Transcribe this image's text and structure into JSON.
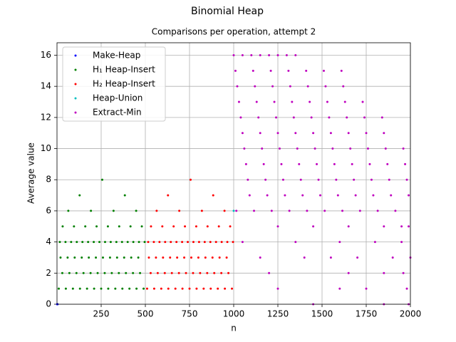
{
  "chart_data": {
    "type": "scatter",
    "title": "Binomial Heap",
    "subtitle": "Comparisons per operation, attempt 2",
    "x_label": "n",
    "y_label": "Average value",
    "xlim": [
      0,
      2000
    ],
    "ylim": [
      0,
      16.8
    ],
    "xticks": [
      250,
      500,
      750,
      1000,
      1250,
      1500,
      1750,
      2000
    ],
    "yticks": [
      0,
      2,
      4,
      6,
      8,
      10,
      12,
      14,
      16
    ],
    "grid": true,
    "legend": "upper left",
    "series": [
      {
        "name": "Make-Heap",
        "color": "#0000ff",
        "x": [
          1,
          2,
          3
        ],
        "values": [
          0,
          0,
          0
        ]
      },
      {
        "name": "H₁ Heap-Insert",
        "color": "#008000",
        "x": [
          10,
          50,
          90,
          130,
          170,
          210,
          250,
          290,
          330,
          370,
          410,
          450,
          490,
          30,
          70,
          110,
          150,
          190,
          230,
          270,
          310,
          350,
          390,
          430,
          470,
          20,
          60,
          100,
          140,
          180,
          220,
          260,
          300,
          340,
          380,
          420,
          460,
          16,
          48,
          80,
          112,
          144,
          176,
          208,
          240,
          272,
          304,
          336,
          368,
          400,
          432,
          464,
          496,
          32,
          96,
          160,
          224,
          288,
          352,
          416,
          480,
          64,
          192,
          320,
          448,
          128,
          384,
          256
        ],
        "values": [
          1,
          1,
          1,
          1,
          1,
          1,
          1,
          1,
          1,
          1,
          1,
          1,
          1,
          2,
          2,
          2,
          2,
          2,
          2,
          2,
          2,
          2,
          2,
          2,
          2,
          3,
          3,
          3,
          3,
          3,
          3,
          3,
          3,
          3,
          3,
          3,
          3,
          4,
          4,
          4,
          4,
          4,
          4,
          4,
          4,
          4,
          4,
          4,
          4,
          4,
          4,
          4,
          4,
          5,
          5,
          5,
          5,
          5,
          5,
          5,
          5,
          6,
          6,
          6,
          6,
          7,
          7,
          8
        ]
      },
      {
        "name": "H₂ Heap-Insert",
        "color": "#ff0000",
        "x": [
          510,
          550,
          590,
          630,
          670,
          710,
          750,
          790,
          830,
          870,
          910,
          950,
          990,
          530,
          570,
          610,
          650,
          690,
          730,
          770,
          810,
          850,
          890,
          930,
          970,
          520,
          560,
          600,
          640,
          680,
          720,
          760,
          800,
          840,
          880,
          920,
          960,
          516,
          548,
          580,
          612,
          644,
          676,
          708,
          740,
          772,
          804,
          836,
          868,
          900,
          932,
          964,
          996,
          532,
          596,
          660,
          724,
          788,
          852,
          916,
          980,
          564,
          692,
          820,
          948,
          628,
          884,
          756
        ],
        "values": [
          1,
          1,
          1,
          1,
          1,
          1,
          1,
          1,
          1,
          1,
          1,
          1,
          1,
          2,
          2,
          2,
          2,
          2,
          2,
          2,
          2,
          2,
          2,
          2,
          2,
          3,
          3,
          3,
          3,
          3,
          3,
          3,
          3,
          3,
          3,
          3,
          3,
          4,
          4,
          4,
          4,
          4,
          4,
          4,
          4,
          4,
          4,
          4,
          4,
          4,
          4,
          4,
          4,
          5,
          5,
          5,
          5,
          5,
          5,
          5,
          5,
          6,
          6,
          6,
          6,
          7,
          7,
          8
        ]
      },
      {
        "name": "Heap-Union",
        "color": "#00bfbf",
        "x": [
          1000
        ],
        "values": [
          6
        ]
      },
      {
        "name": "Extract-Min",
        "color": "#bf00bf",
        "x": [
          1000,
          1050,
          1100,
          1150,
          1200,
          1250,
          1300,
          1350,
          1010,
          1110,
          1210,
          1310,
          1410,
          1510,
          1610,
          1020,
          1120,
          1220,
          1320,
          1420,
          1520,
          1620,
          1030,
          1130,
          1230,
          1330,
          1430,
          1530,
          1630,
          1730,
          1040,
          1140,
          1240,
          1340,
          1440,
          1540,
          1640,
          1740,
          1840,
          1050,
          1150,
          1250,
          1350,
          1450,
          1550,
          1650,
          1750,
          1850,
          1060,
          1160,
          1260,
          1360,
          1460,
          1560,
          1660,
          1760,
          1860,
          1960,
          1070,
          1170,
          1270,
          1370,
          1470,
          1570,
          1670,
          1770,
          1870,
          1970,
          1080,
          1180,
          1280,
          1380,
          1480,
          1580,
          1680,
          1780,
          1880,
          1980,
          1090,
          1190,
          1290,
          1390,
          1490,
          1590,
          1690,
          1790,
          1890,
          1990,
          1015,
          1115,
          1215,
          1315,
          1415,
          1515,
          1615,
          1715,
          1815,
          1915,
          1250,
          1450,
          1650,
          1850,
          1950,
          1990,
          1050,
          1350,
          1600,
          1800,
          1950,
          1150,
          1400,
          1550,
          1700,
          1900,
          2000,
          1200,
          1650,
          1850,
          1960,
          1250,
          1600,
          1750,
          1980,
          1450,
          1850,
          1990
        ],
        "values": [
          16,
          16,
          16,
          16,
          16,
          16,
          16,
          16,
          15,
          15,
          15,
          15,
          15,
          15,
          15,
          14,
          14,
          14,
          14,
          14,
          14,
          14,
          13,
          13,
          13,
          13,
          13,
          13,
          13,
          13,
          12,
          12,
          12,
          12,
          12,
          12,
          12,
          12,
          12,
          11,
          11,
          11,
          11,
          11,
          11,
          11,
          11,
          11,
          10,
          10,
          10,
          10,
          10,
          10,
          10,
          10,
          10,
          10,
          9,
          9,
          9,
          9,
          9,
          9,
          9,
          9,
          9,
          9,
          8,
          8,
          8,
          8,
          8,
          8,
          8,
          8,
          8,
          8,
          7,
          7,
          7,
          7,
          7,
          7,
          7,
          7,
          7,
          7,
          6,
          6,
          6,
          6,
          6,
          6,
          6,
          6,
          6,
          6,
          5,
          5,
          5,
          5,
          5,
          5,
          4,
          4,
          4,
          4,
          4,
          3,
          3,
          3,
          3,
          3,
          3,
          2,
          2,
          2,
          2,
          1,
          1,
          1,
          1,
          0,
          0,
          0
        ]
      }
    ]
  }
}
